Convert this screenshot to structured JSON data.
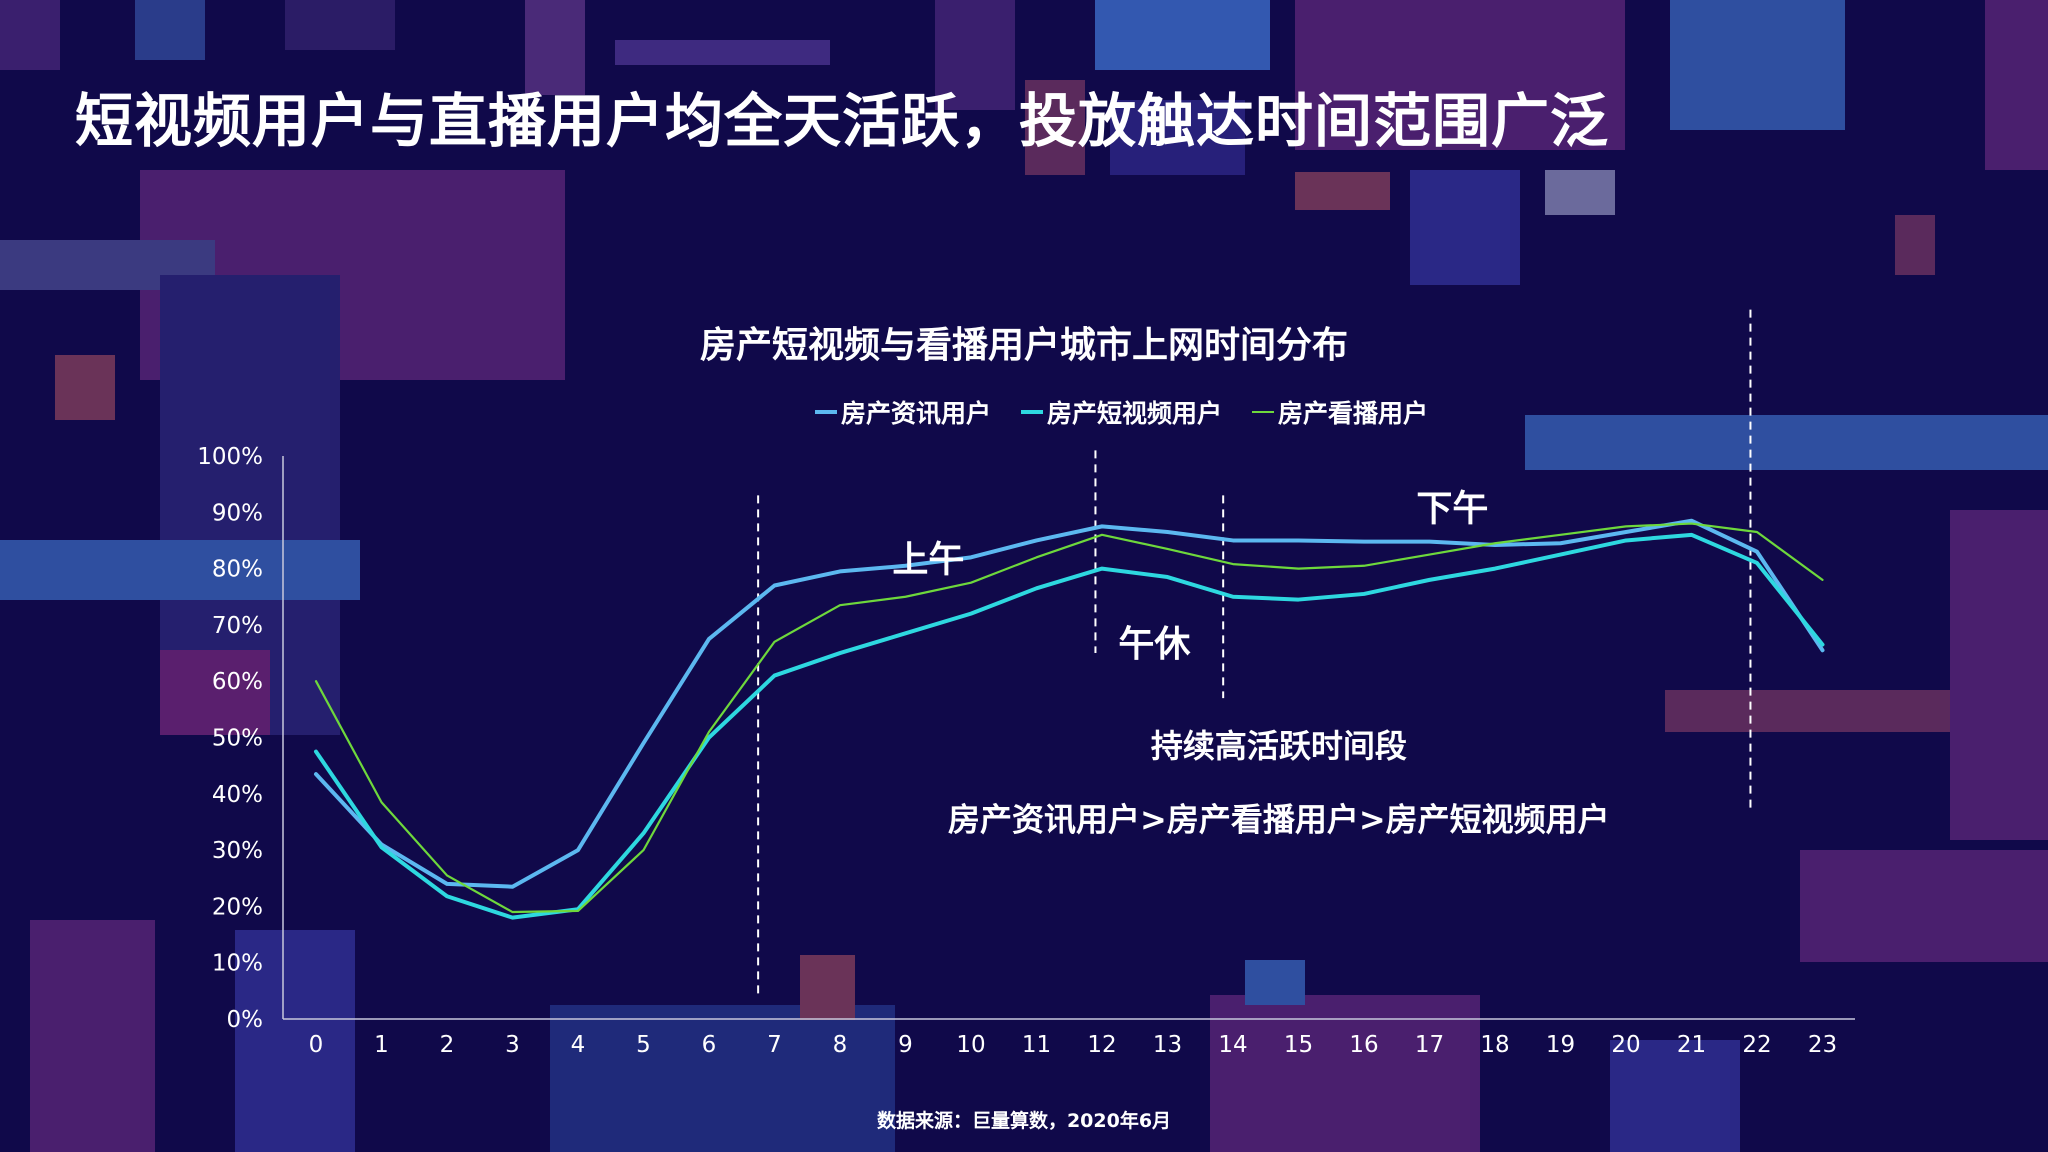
{
  "page": {
    "title": "短视频用户与直播用户均全天活跃，投放触达时间范围广泛",
    "source": "数据来源：巨量算数，2020年6月"
  },
  "chart_data": {
    "type": "line",
    "title": "房产短视频与看播用户城市上网时间分布",
    "xlabel": "",
    "ylabel": "",
    "x": [
      0,
      1,
      2,
      3,
      4,
      5,
      6,
      7,
      8,
      9,
      10,
      11,
      12,
      13,
      14,
      15,
      16,
      17,
      18,
      19,
      20,
      21,
      22,
      23
    ],
    "y_ticks": [
      "0%",
      "10%",
      "20%",
      "30%",
      "40%",
      "50%",
      "60%",
      "70%",
      "80%",
      "90%",
      "100%"
    ],
    "ylim": [
      0,
      100
    ],
    "legend_position": "top-center",
    "grid": false,
    "series": [
      {
        "name": "房产资讯用户",
        "color": "#5cb8f0",
        "values": [
          43.5,
          31,
          24,
          23.5,
          30,
          49,
          67.5,
          77,
          79.5,
          80.5,
          82,
          85,
          87.5,
          86.5,
          85,
          85,
          84.8,
          84.8,
          84.2,
          84.5,
          86.5,
          88.5,
          83,
          65.5
        ]
      },
      {
        "name": "房产短视频用户",
        "color": "#2ed8e0",
        "values": [
          47.5,
          30.5,
          21.8,
          18,
          19.5,
          33,
          50,
          61,
          65,
          68.5,
          72,
          76.5,
          80,
          78.5,
          75,
          74.5,
          75.5,
          78,
          80,
          82.5,
          85,
          86,
          81,
          66.5
        ]
      },
      {
        "name": "房产看播用户",
        "color": "#6ed83c",
        "values": [
          60,
          38.5,
          25.5,
          19,
          19.2,
          30,
          51,
          67,
          73.5,
          75,
          77.5,
          82,
          86,
          83.5,
          80.8,
          80,
          80.5,
          82.5,
          84.5,
          86,
          87.5,
          88,
          86.5,
          78
        ]
      }
    ],
    "annotations": {
      "morning": "上午",
      "noon_break": "午休",
      "afternoon": "下午",
      "active_period": "持续高活跃时间段",
      "ranking": "房产资讯用户>房产看播用户>房产短视频用户"
    }
  }
}
